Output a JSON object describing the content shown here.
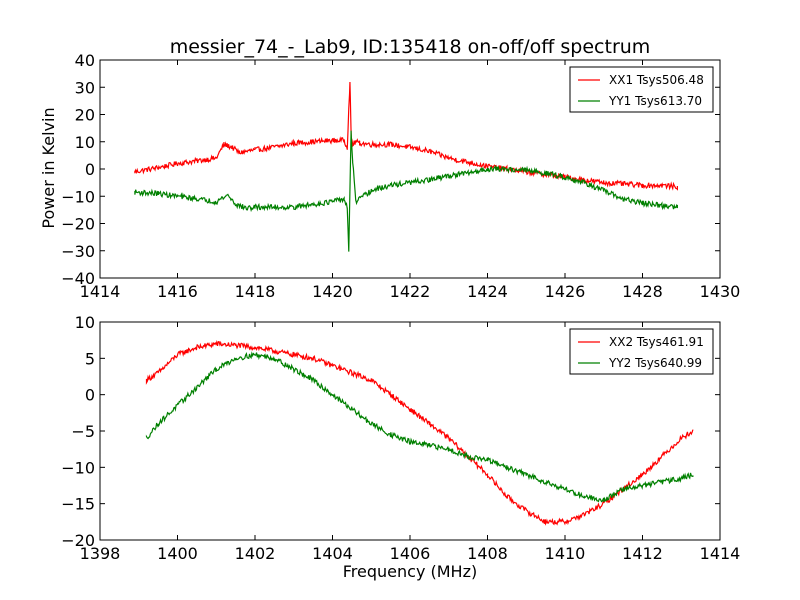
{
  "figure": {
    "title": "messier_74_-_Lab9, ID:135418 on-off/off spectrum",
    "ylabel": "Power in Kelvin",
    "xlabel": "Frequency (MHz)"
  },
  "colors": {
    "red": "#ff0000",
    "green": "#008000"
  },
  "chart_data": [
    {
      "type": "line",
      "xlim": [
        1414,
        1430
      ],
      "ylim": [
        -40,
        40
      ],
      "xticks": [
        1414,
        1416,
        1418,
        1420,
        1422,
        1424,
        1426,
        1428,
        1430
      ],
      "yticks": [
        -40,
        -30,
        -20,
        -10,
        0,
        10,
        20,
        30,
        40
      ],
      "grid": false,
      "legend_position": "top-right",
      "series": [
        {
          "name": "XX1 Tsys506.48",
          "color": "#ff0000",
          "x": [
            1414.9,
            1415.5,
            1416.0,
            1416.5,
            1417.0,
            1417.2,
            1417.4,
            1417.6,
            1418.0,
            1418.5,
            1419.0,
            1419.5,
            1420.0,
            1420.3,
            1420.38,
            1420.45,
            1420.48,
            1420.52,
            1420.6,
            1420.7,
            1421.0,
            1421.5,
            1422.0,
            1422.5,
            1423.0,
            1423.5,
            1424.0,
            1424.5,
            1425.0,
            1425.5,
            1426.0,
            1426.5,
            1427.0,
            1427.5,
            1428.0,
            1428.5,
            1428.9
          ],
          "y": [
            -1,
            0.5,
            2,
            3,
            4,
            9,
            8,
            6,
            7,
            8,
            9.5,
            10,
            10.5,
            10.5,
            8,
            32,
            12,
            9,
            10,
            9.5,
            9,
            9,
            8,
            6.5,
            4,
            2.5,
            1,
            0,
            -1,
            -2,
            -3,
            -4,
            -5,
            -5.5,
            -6,
            -6,
            -6.5
          ]
        },
        {
          "name": "YY1 Tsys613.70",
          "color": "#008000",
          "x": [
            1414.9,
            1415.5,
            1416.0,
            1416.5,
            1417.0,
            1417.3,
            1417.5,
            1417.8,
            1418.0,
            1418.5,
            1419.0,
            1419.5,
            1420.0,
            1420.3,
            1420.38,
            1420.42,
            1420.48,
            1420.52,
            1420.6,
            1420.8,
            1421.0,
            1421.5,
            1422.0,
            1422.5,
            1423.0,
            1423.5,
            1424.0,
            1424.5,
            1425.0,
            1425.5,
            1426.0,
            1426.5,
            1427.0,
            1427.5,
            1428.0,
            1428.5,
            1428.9
          ],
          "y": [
            -8.5,
            -9,
            -10,
            -11,
            -12,
            -9.5,
            -13,
            -14.5,
            -14,
            -14,
            -14,
            -13,
            -12,
            -11,
            -14,
            -31,
            14,
            3,
            -12,
            -10,
            -8,
            -6,
            -5,
            -4,
            -2.5,
            -1.5,
            0,
            0,
            -0.5,
            -1.5,
            -3,
            -5,
            -8,
            -11,
            -12.5,
            -13.5,
            -14
          ]
        }
      ]
    },
    {
      "type": "line",
      "xlim": [
        1398,
        1414
      ],
      "ylim": [
        -20,
        10
      ],
      "xticks": [
        1398,
        1400,
        1402,
        1404,
        1406,
        1408,
        1410,
        1412,
        1414
      ],
      "yticks": [
        -20,
        -15,
        -10,
        -5,
        0,
        5,
        10
      ],
      "grid": false,
      "legend_position": "top-right",
      "series": [
        {
          "name": "XX2 Tsys461.91",
          "color": "#ff0000",
          "x": [
            1399.2,
            1399.5,
            1400.0,
            1400.5,
            1401.0,
            1401.5,
            1402.0,
            1402.5,
            1403.0,
            1403.5,
            1404.0,
            1404.5,
            1405.0,
            1405.5,
            1406.0,
            1406.5,
            1407.0,
            1407.5,
            1408.0,
            1408.5,
            1409.0,
            1409.5,
            1410.0,
            1410.5,
            1411.0,
            1411.5,
            1412.0,
            1412.5,
            1413.0,
            1413.3
          ],
          "y": [
            2,
            3,
            5.5,
            6.5,
            7,
            6.8,
            6.5,
            6,
            5.5,
            5,
            4,
            3,
            2,
            0,
            -2,
            -4,
            -6,
            -8.5,
            -11,
            -14,
            -16,
            -17.5,
            -17.5,
            -16.5,
            -15,
            -13,
            -11,
            -8.5,
            -6,
            -5
          ]
        },
        {
          "name": "YY2 Tsys640.99",
          "color": "#008000",
          "x": [
            1399.2,
            1399.5,
            1400.0,
            1400.5,
            1401.0,
            1401.5,
            1402.0,
            1402.5,
            1403.0,
            1403.5,
            1404.0,
            1404.5,
            1405.0,
            1405.5,
            1406.0,
            1406.5,
            1407.0,
            1407.5,
            1408.0,
            1408.5,
            1409.0,
            1409.5,
            1410.0,
            1410.5,
            1411.0,
            1411.5,
            1412.0,
            1412.5,
            1413.0,
            1413.3
          ],
          "y": [
            -6,
            -4,
            -1.5,
            1,
            3.5,
            5,
            5.5,
            5,
            3.5,
            2,
            0,
            -2,
            -4,
            -5.5,
            -6.5,
            -7,
            -7.5,
            -8.5,
            -9,
            -10,
            -11,
            -12,
            -13,
            -14,
            -14.5,
            -13,
            -12.5,
            -12,
            -11.5,
            -11
          ]
        }
      ]
    }
  ]
}
